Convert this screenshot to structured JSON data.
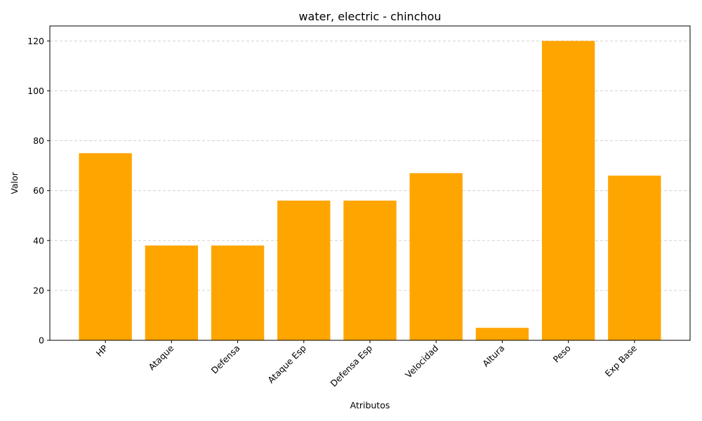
{
  "chart_data": {
    "type": "bar",
    "title": "water, electric - chinchou",
    "xlabel": "Atributos",
    "ylabel": "Valor",
    "categories": [
      "HP",
      "Ataque",
      "Defensa",
      "Ataque Esp",
      "Defensa Esp",
      "Velocidad",
      "Altura",
      "Peso",
      "Exp Base"
    ],
    "values": [
      75,
      38,
      38,
      56,
      56,
      67,
      5,
      120,
      66
    ],
    "ylim": [
      0,
      126
    ],
    "yticks": [
      0,
      20,
      40,
      60,
      80,
      100,
      120
    ],
    "grid": "y-dashed",
    "bar_color": "#ffa500"
  }
}
